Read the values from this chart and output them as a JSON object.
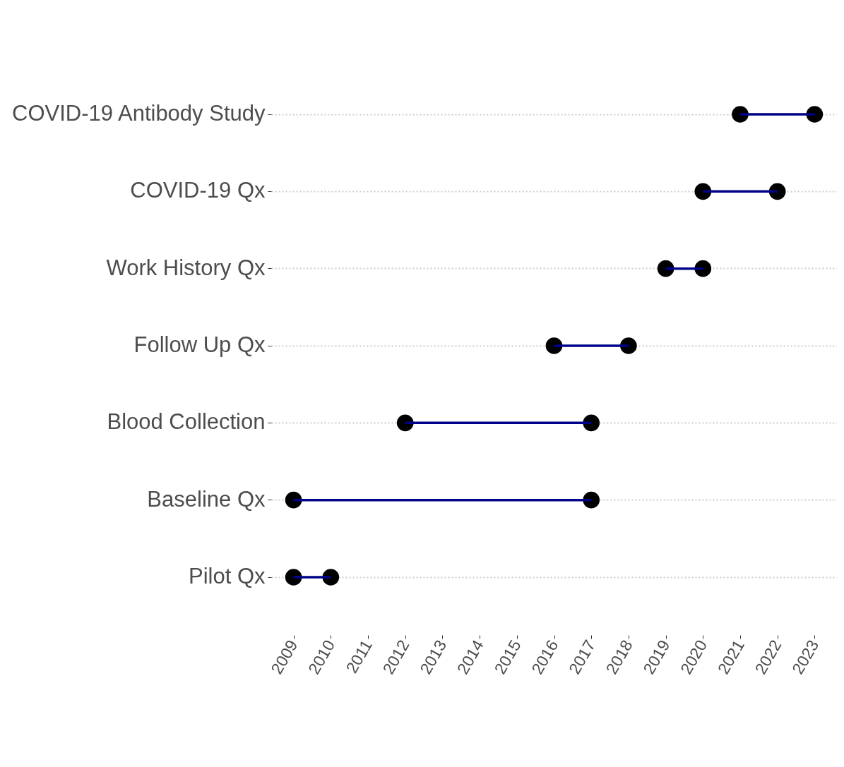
{
  "chart_data": {
    "type": "bar",
    "orientation": "horizontal",
    "categories": [
      "COVID-19 Antibody Study",
      "COVID-19 Qx",
      "Work History Qx",
      "Follow Up Qx",
      "Blood Collection",
      "Baseline Qx",
      "Pilot Qx"
    ],
    "series": [
      {
        "type": "bar",
        "color": "#00008b",
        "base": [
          2021,
          2020,
          2019,
          2016,
          2012,
          2009,
          2009
        ],
        "values": [
          2,
          2,
          1,
          2,
          5,
          8,
          1
        ]
      },
      {
        "type": "scatter",
        "color": "#000000",
        "values": [
          2021,
          2020,
          2019,
          2016,
          2012,
          2009,
          2009
        ]
      },
      {
        "type": "scatter",
        "color": "#000000",
        "values": [
          2023,
          2022,
          2020,
          2018,
          2017,
          2017,
          2010
        ]
      }
    ],
    "marker": "circle",
    "grid": "y",
    "xlim": [
      2008.4,
      2023.6
    ],
    "xticks": [
      2009,
      2010,
      2011,
      2012,
      2013,
      2014,
      2015,
      2016,
      2017,
      2018,
      2019,
      2020,
      2021,
      2022,
      2023
    ]
  }
}
